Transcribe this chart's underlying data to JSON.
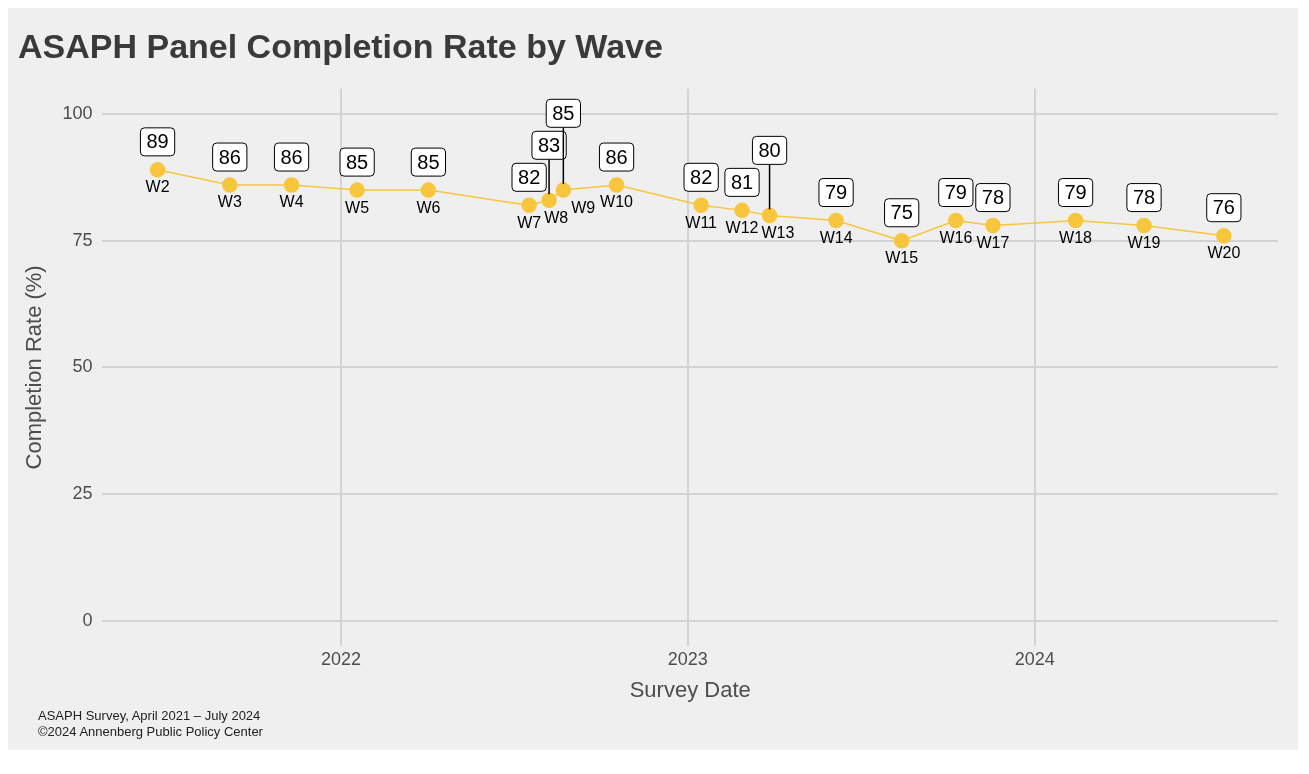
{
  "chart_data": {
    "type": "line",
    "title": "ASAPH Panel Completion Rate by Wave",
    "xlabel": "Survey Date",
    "ylabel": "Completion Rate (%)",
    "x": [
      "2021-06-22",
      "2021-09-06",
      "2021-11-10",
      "2022-01-18",
      "2022-04-03",
      "2022-07-18",
      "2022-08-08",
      "2022-08-23",
      "2022-10-18",
      "2023-01-15",
      "2023-02-27",
      "2023-03-28",
      "2023-06-06",
      "2023-08-14",
      "2023-10-10",
      "2023-11-18",
      "2024-02-13",
      "2024-04-25",
      "2024-07-18"
    ],
    "series": [
      {
        "color": "#f7c63d",
        "values": [
          89,
          86,
          86,
          85,
          85,
          82,
          83,
          85,
          86,
          82,
          81,
          80,
          79,
          75,
          79,
          78,
          79,
          78,
          76
        ]
      }
    ],
    "xlim": [
      "2021-04-25",
      "2024-09-13"
    ],
    "xticks": [
      "2022",
      "2023",
      "2024"
    ],
    "ylim": [
      -5,
      105
    ],
    "yticks": [
      0,
      25,
      50,
      75,
      100
    ],
    "grid": true,
    "legend": false,
    "marker": "circle",
    "line_style": "solid",
    "data_labels": true,
    "annotations": [
      {
        "text": "W2",
        "x": "2021-06-22",
        "y": 89
      },
      {
        "text": "W3",
        "x": "2021-09-06",
        "y": 86
      },
      {
        "text": "W4",
        "x": "2021-11-10",
        "y": 86
      },
      {
        "text": "W5",
        "x": "2022-01-18",
        "y": 85
      },
      {
        "text": "W6",
        "x": "2022-04-03",
        "y": 85
      },
      {
        "text": "W7",
        "x": "2022-07-18",
        "y": 82
      },
      {
        "text": "W8",
        "x": "2022-08-08",
        "y": 83
      },
      {
        "text": "W9",
        "x": "2022-08-23",
        "y": 85
      },
      {
        "text": "W10",
        "x": "2022-10-18",
        "y": 86
      },
      {
        "text": "W11",
        "x": "2023-01-15",
        "y": 82
      },
      {
        "text": "W12",
        "x": "2023-02-27",
        "y": 81
      },
      {
        "text": "W13",
        "x": "2023-03-28",
        "y": 80
      },
      {
        "text": "W14",
        "x": "2023-06-06",
        "y": 79
      },
      {
        "text": "W15",
        "x": "2023-08-14",
        "y": 75
      },
      {
        "text": "W16",
        "x": "2023-10-10",
        "y": 79
      },
      {
        "text": "W17",
        "x": "2023-11-18",
        "y": 78
      },
      {
        "text": "W18",
        "x": "2024-02-13",
        "y": 79
      },
      {
        "text": "W19",
        "x": "2024-04-25",
        "y": 78
      },
      {
        "text": "W20",
        "x": "2024-07-18",
        "y": 76
      },
      "ASAPH Survey, April 2021 – July 2024",
      "©2024 Annenberg Public Policy Center"
    ]
  }
}
